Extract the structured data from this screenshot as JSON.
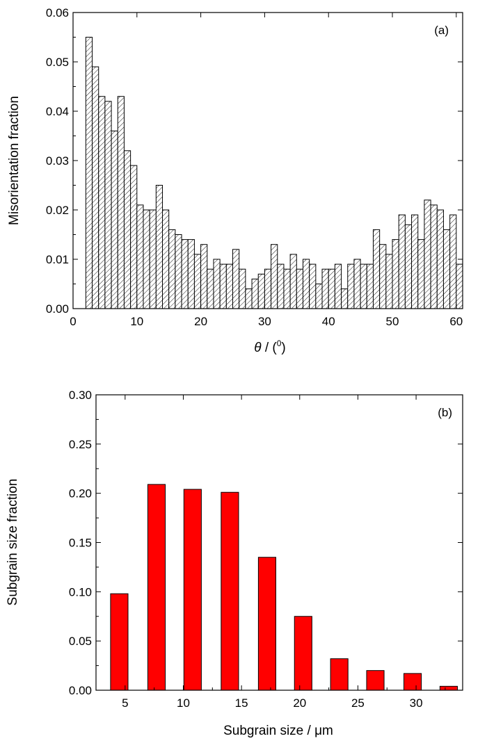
{
  "chart_data": [
    {
      "panel_label": "(a)",
      "type": "bar",
      "xlabel_symbol": "θ",
      "xlabel_text": " / (",
      "xlabel_sup": "0",
      "xlabel_close": ")",
      "ylabel": "Misorientation fraction",
      "xlim": [
        0,
        61
      ],
      "ylim": [
        0,
        0.06
      ],
      "xticks": [
        "0",
        "10",
        "20",
        "30",
        "40",
        "50",
        "60"
      ],
      "yticks": [
        "0.00",
        "0.01",
        "0.02",
        "0.03",
        "0.04",
        "0.05",
        "0.06"
      ],
      "bar_width": 1,
      "fill": "hatched",
      "x": [
        2.5,
        3.5,
        4.5,
        5.5,
        6.5,
        7.5,
        8.5,
        9.5,
        10.5,
        11.5,
        12.5,
        13.5,
        14.5,
        15.5,
        16.5,
        17.5,
        18.5,
        19.5,
        20.5,
        21.5,
        22.5,
        23.5,
        24.5,
        25.5,
        26.5,
        27.5,
        28.5,
        29.5,
        30.5,
        31.5,
        32.5,
        33.5,
        34.5,
        35.5,
        36.5,
        37.5,
        38.5,
        39.5,
        40.5,
        41.5,
        42.5,
        43.5,
        44.5,
        45.5,
        46.5,
        47.5,
        48.5,
        49.5,
        50.5,
        51.5,
        52.5,
        53.5,
        54.5,
        55.5,
        56.5,
        57.5,
        58.5,
        59.5,
        60.5
      ],
      "values": [
        0.055,
        0.049,
        0.043,
        0.042,
        0.036,
        0.043,
        0.032,
        0.029,
        0.021,
        0.02,
        0.02,
        0.025,
        0.02,
        0.016,
        0.015,
        0.014,
        0.014,
        0.011,
        0.013,
        0.008,
        0.01,
        0.009,
        0.009,
        0.012,
        0.008,
        0.004,
        0.006,
        0.007,
        0.008,
        0.013,
        0.009,
        0.008,
        0.011,
        0.008,
        0.01,
        0.009,
        0.005,
        0.008,
        0.008,
        0.009,
        0.004,
        0.009,
        0.01,
        0.009,
        0.009,
        0.016,
        0.013,
        0.011,
        0.014,
        0.019,
        0.017,
        0.019,
        0.014,
        0.022,
        0.021,
        0.02,
        0.016,
        0.019,
        0.009
      ]
    },
    {
      "panel_label": "(b)",
      "type": "bar",
      "xlabel_text": "Subgrain size / μm",
      "ylabel": "Subgrain size fraction",
      "xlim": [
        2.5,
        34
      ],
      "ylim": [
        0,
        0.3
      ],
      "xticks": [
        "5",
        "10",
        "15",
        "20",
        "25",
        "30"
      ],
      "yticks": [
        "0.00",
        "0.05",
        "0.10",
        "0.15",
        "0.20",
        "0.25",
        "0.30"
      ],
      "bar_width": 1.5,
      "fill": "#ff0000",
      "x": [
        4.5,
        7.7,
        10.8,
        14,
        17.2,
        20.3,
        23.4,
        26.5,
        29.7,
        32.8
      ],
      "values": [
        0.098,
        0.209,
        0.204,
        0.201,
        0.135,
        0.075,
        0.032,
        0.02,
        0.017,
        0.004
      ]
    }
  ]
}
